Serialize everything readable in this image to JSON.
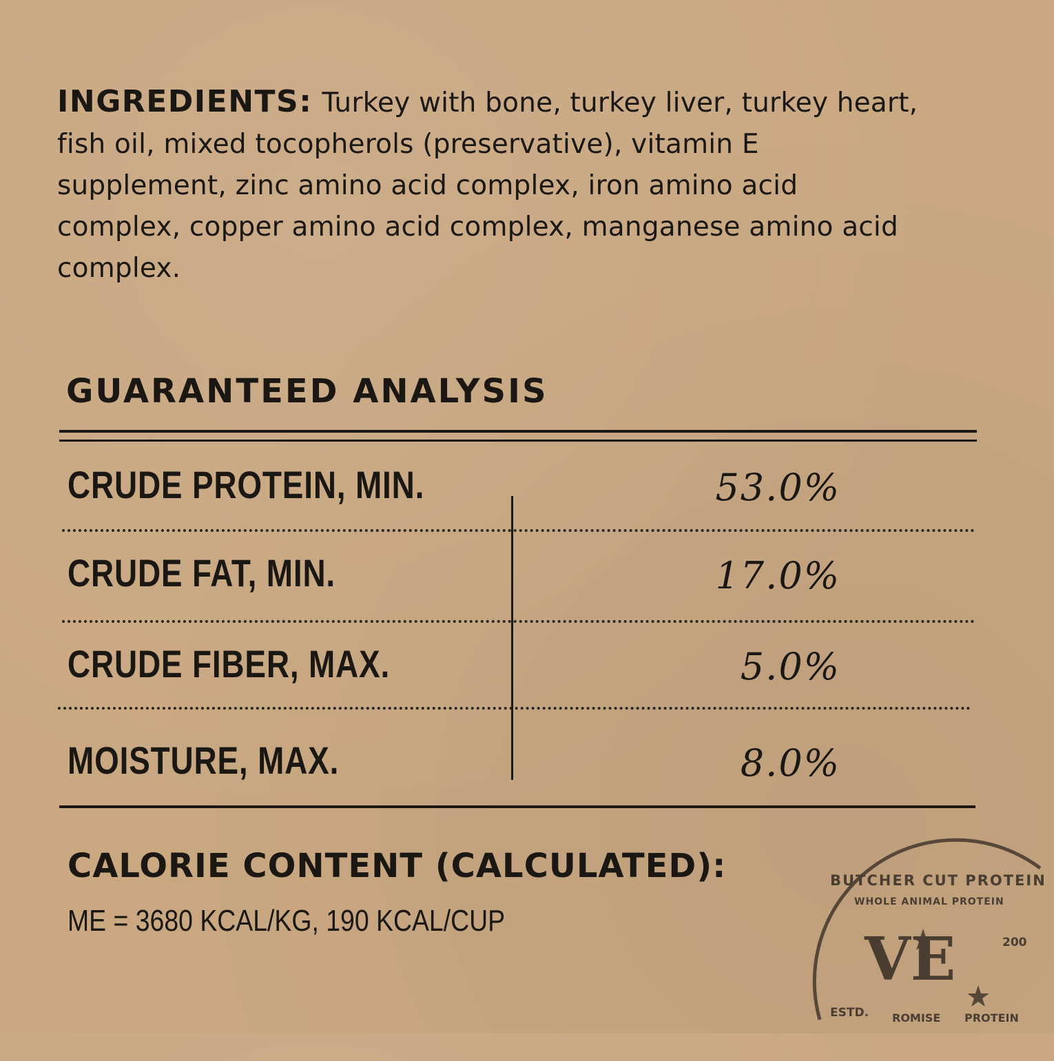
{
  "ingredients": {
    "heading": "INGREDIENTS:",
    "text": "Turkey with bone, turkey liver, turkey heart, fish oil, mixed tocopherols (preservative), vitamin E supplement, zinc amino acid complex, iron amino acid complex, copper amino acid complex, manganese amino acid complex."
  },
  "guaranteed_analysis": {
    "title": "GUARANTEED ANALYSIS",
    "rows": [
      {
        "label": "CRUDE PROTEIN, MIN.",
        "value": "53.0%"
      },
      {
        "label": "CRUDE FAT, MIN.",
        "value": "17.0%"
      },
      {
        "label": "CRUDE FIBER, MAX.",
        "value": "5.0%"
      },
      {
        "label": "MOISTURE, MAX.",
        "value": "8.0%"
      }
    ]
  },
  "calorie": {
    "title": "CALORIE CONTENT (CALCULATED):",
    "value": "ME = 3680 KCAL/KG, 190 KCAL/CUP"
  },
  "stamp": {
    "outer_text": "BUTCHER CUT PROTEIN",
    "inner_text": "WHOLE ANIMAL PROTEIN",
    "logo": "VE",
    "estd": "ESTD.",
    "year": "200",
    "bottom_text": "ROMISE",
    "bottom_text2": "PROTEIN",
    "color": "#4a3d32"
  },
  "colors": {
    "background": "#c9a882",
    "text": "#1b1814"
  }
}
